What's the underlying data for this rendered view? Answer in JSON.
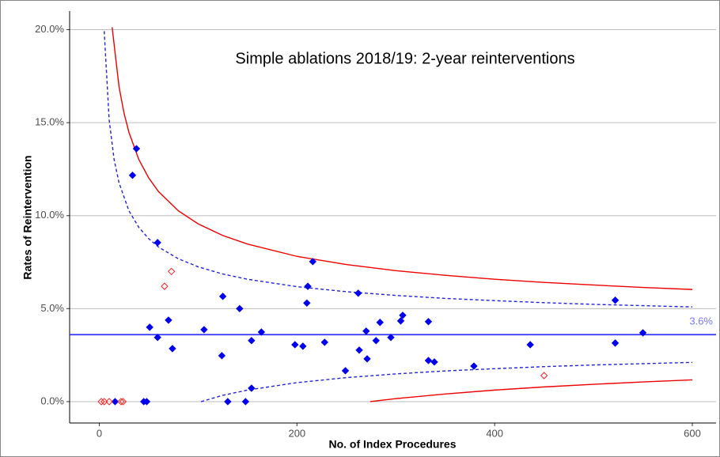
{
  "chart_data": {
    "type": "scatter",
    "title": "Simple ablations 2018/19: 2-year reinterventions",
    "x_label": "No. of Index Procedures",
    "y_label": "Rates of Reintervention",
    "xlim": [
      -30,
      624
    ],
    "ylim": [
      -1.15,
      21.0
    ],
    "xticks": [
      0,
      200,
      400,
      600
    ],
    "yticks": [
      {
        "value": 0,
        "label": "0.0%"
      },
      {
        "value": 5,
        "label": "5.0%"
      },
      {
        "value": 10,
        "label": "10.0%"
      },
      {
        "value": 15,
        "label": "15.0%"
      },
      {
        "value": 20,
        "label": "20.0%"
      }
    ],
    "grid": true,
    "reference": {
      "value": 3.6,
      "label": "3.6%",
      "color": "#3333ff"
    },
    "series": [
      {
        "color": "#0000ee",
        "marker": "filled",
        "x": [
          37.6,
          33.6,
          59,
          216,
          211,
          210,
          262,
          125,
          142,
          522,
          51,
          70,
          59,
          74,
          106,
          124,
          130,
          148,
          154,
          154,
          164,
          198,
          206,
          228,
          249,
          263,
          270,
          271,
          280,
          284,
          295,
          305,
          307,
          333,
          333,
          339,
          379,
          436,
          522,
          550,
          16,
          45,
          48
        ],
        "values": [
          13.6,
          12.17,
          8.55,
          7.53,
          6.2,
          5.3,
          5.83,
          5.66,
          5.0,
          5.45,
          4.0,
          4.38,
          3.45,
          2.85,
          3.87,
          2.47,
          0,
          0,
          0.72,
          3.28,
          3.74,
          3.06,
          2.98,
          3.19,
          1.66,
          2.77,
          3.79,
          2.3,
          3.28,
          4.26,
          3.45,
          4.34,
          4.64,
          4.3,
          2.21,
          2.13,
          1.91,
          3.06,
          3.15,
          3.7,
          0,
          0,
          0
        ]
      },
      {
        "color": "#ff2020",
        "marker": "open",
        "x": [
          66,
          73,
          450,
          2,
          5,
          10,
          22,
          24
        ],
        "values": [
          6.2,
          7.0,
          1.4,
          0,
          0,
          0,
          0,
          0
        ]
      }
    ],
    "limits": [
      {
        "color": "#ee0000",
        "dash": false,
        "x": [
          13,
          20,
          25,
          30,
          40,
          50,
          60,
          80,
          100,
          125,
          150,
          200,
          250,
          300,
          350,
          400,
          450,
          500,
          550,
          600
        ],
        "values": [
          20.13,
          16.93,
          15.52,
          14.48,
          13.02,
          12.03,
          11.29,
          10.26,
          9.56,
          8.93,
          8.47,
          7.81,
          7.37,
          7.04,
          6.79,
          6.58,
          6.41,
          6.27,
          6.14,
          6.03
        ]
      },
      {
        "color": "#2222dd",
        "dash": true,
        "x": [
          5,
          10,
          15,
          20,
          30,
          40,
          50,
          60,
          80,
          100,
          125,
          150,
          200,
          250,
          300,
          350,
          400,
          450,
          500,
          550,
          600
        ],
        "values": [
          19.92,
          15.14,
          13.02,
          11.76,
          10.26,
          9.37,
          8.76,
          8.31,
          7.68,
          7.25,
          6.86,
          6.58,
          6.18,
          5.91,
          5.71,
          5.55,
          5.43,
          5.32,
          5.23,
          5.16,
          5.09
        ]
      },
      {
        "color": "#2222dd",
        "dash": true,
        "x": [
          103,
          125,
          150,
          200,
          250,
          300,
          350,
          400,
          450,
          500,
          550,
          600
        ],
        "values": [
          0.0,
          0.34,
          0.62,
          1.02,
          1.29,
          1.49,
          1.65,
          1.77,
          1.88,
          1.97,
          2.04,
          2.11
        ]
      },
      {
        "color": "#ee0000",
        "dash": false,
        "x": [
          274,
          300,
          350,
          400,
          450,
          500,
          550,
          600
        ],
        "values": [
          0.0,
          0.16,
          0.41,
          0.62,
          0.79,
          0.93,
          1.06,
          1.17
        ]
      }
    ]
  }
}
